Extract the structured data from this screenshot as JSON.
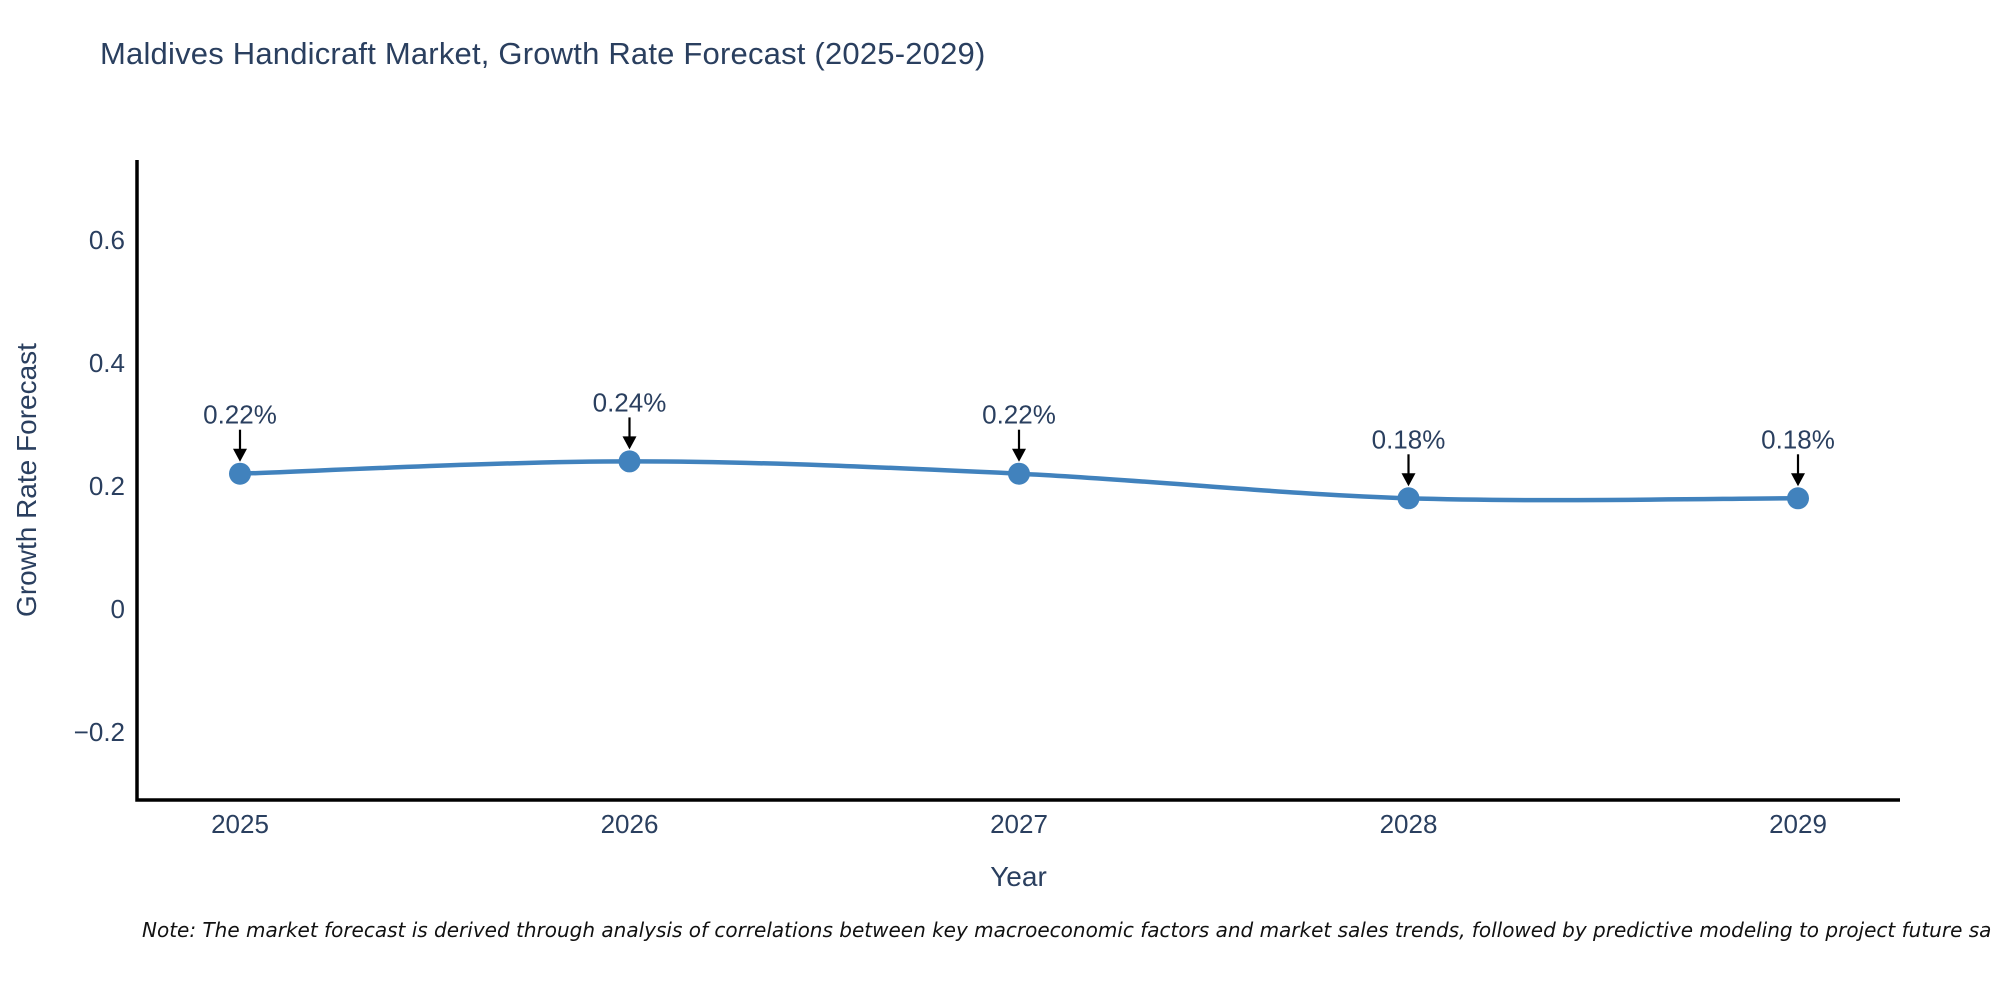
{
  "note": "Note: The market forecast is derived through analysis of correlations between key macroeconomic factors and market sales trends, followed by predictive modeling to project future sa",
  "chart_data": {
    "type": "line",
    "title": "Maldives Handicraft Market, Growth Rate Forecast (2025-2029)",
    "xlabel": "Year",
    "ylabel": "Growth Rate Forecast",
    "categories": [
      "2025",
      "2026",
      "2027",
      "2028",
      "2029"
    ],
    "series": [
      {
        "name": "Growth Rate Forecast",
        "values": [
          0.22,
          0.24,
          0.22,
          0.18,
          0.18
        ]
      }
    ],
    "point_labels": [
      "0.22%",
      "0.24%",
      "0.22%",
      "0.18%",
      "0.18%"
    ],
    "y_ticks": [
      0.6,
      0.4,
      0.2,
      0,
      -0.2
    ],
    "y_tick_labels": [
      "0.6",
      "0.4",
      "0.2",
      "0",
      "−0.2"
    ],
    "ylim": [
      -0.31,
      0.73
    ],
    "grid": false,
    "legend": "none",
    "line_shape": "spline",
    "marker": "circle",
    "annotation_style": "value label with downward black arrow to each point",
    "colors": {
      "line": "#4182bd",
      "marker": "#4182bd",
      "axis": "#000000",
      "text": "#2a3f5f",
      "annotation_text": "#2a3f5f",
      "annotation_arrow": "#000000",
      "background": "#ffffff"
    }
  }
}
